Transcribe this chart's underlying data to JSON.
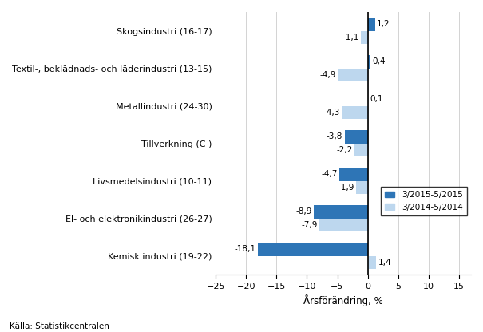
{
  "categories": [
    "Skogsindustri (16-17)",
    "Textil-, beklädnads- och läderindustri (13-15)",
    "Metallindustri (24-30)",
    "Tillverkning (C )",
    "Livsmedelsindustri (10-11)",
    "El- och elektronikindustri (26-27)",
    "Kemisk industri (19-22)"
  ],
  "series1_values": [
    1.2,
    0.4,
    0.1,
    -3.8,
    -4.7,
    -8.9,
    -18.1
  ],
  "series2_values": [
    -1.1,
    -4.9,
    -4.3,
    -2.2,
    -1.9,
    -7.9,
    1.4
  ],
  "series1_label": "3/2015-5/2015",
  "series2_label": "3/2014-5/2014",
  "series1_color": "#2E75B6",
  "series2_color": "#BDD7EE",
  "xlabel": "Årsförändring, %",
  "xlim": [
    -25,
    17
  ],
  "xticks": [
    -25,
    -20,
    -15,
    -10,
    -5,
    0,
    5,
    10,
    15
  ],
  "source": "Källa: Statistikcentralen",
  "bar_height": 0.35
}
